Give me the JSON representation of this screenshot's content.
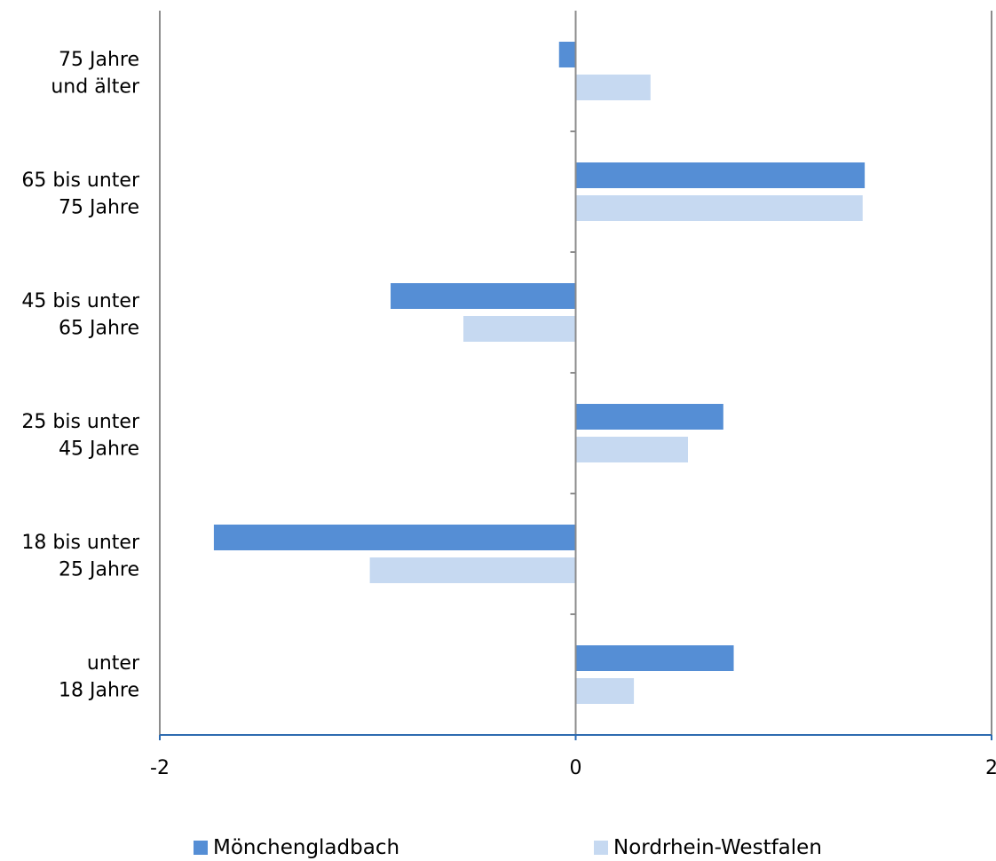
{
  "chart_data": {
    "type": "bar",
    "orientation": "horizontal",
    "categories": [
      [
        "unter",
        "18 Jahre"
      ],
      [
        "18 bis unter",
        "25 Jahre"
      ],
      [
        "25 bis unter",
        "45 Jahre"
      ],
      [
        "45 bis unter",
        "65 Jahre"
      ],
      [
        "65 bis unter",
        "75 Jahre"
      ],
      [
        "75 Jahre",
        "und älter"
      ]
    ],
    "series": [
      {
        "name": "Mönchengladbach",
        "color": "#558ed5",
        "values": [
          0.76,
          -1.74,
          0.71,
          -0.89,
          1.39,
          -0.08
        ]
      },
      {
        "name": "Nordrhein-Westfalen",
        "color": "#c6d9f1",
        "values": [
          0.28,
          -0.99,
          0.54,
          -0.54,
          1.38,
          0.36
        ]
      }
    ],
    "xlim": [
      -2,
      2
    ],
    "xticks": [
      "-2",
      "0",
      "2"
    ],
    "legend_position": "bottom",
    "grid": false
  }
}
